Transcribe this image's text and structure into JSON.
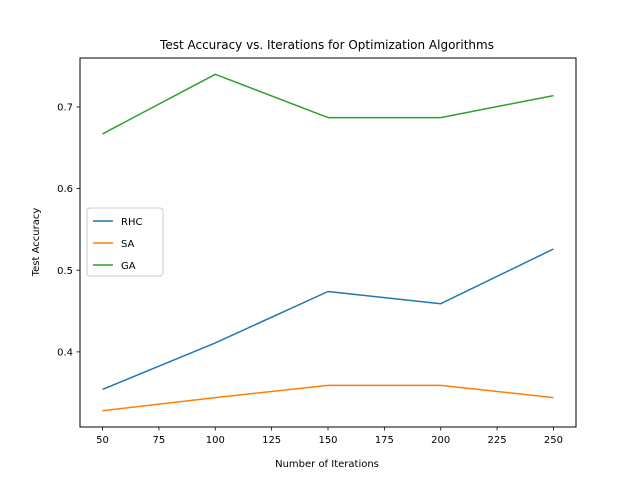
{
  "chart_data": {
    "type": "line",
    "title": "Test Accuracy vs. Iterations for Optimization Algorithms",
    "xlabel": "Number of Iterations",
    "ylabel": "Test Accuracy",
    "x": [
      50,
      100,
      150,
      200,
      250
    ],
    "series": [
      {
        "name": "RHC",
        "color": "#1f77b4",
        "values": [
          0.354,
          0.411,
          0.474,
          0.459,
          0.526
        ]
      },
      {
        "name": "SA",
        "color": "#ff7f0e",
        "values": [
          0.328,
          0.344,
          0.359,
          0.359,
          0.344
        ]
      },
      {
        "name": "GA",
        "color": "#2ca02c",
        "values": [
          0.667,
          0.74,
          0.687,
          0.687,
          0.714
        ]
      }
    ],
    "xlim": [
      40,
      260
    ],
    "ylim": [
      0.308,
      0.76
    ],
    "xticks": [
      50,
      75,
      100,
      125,
      150,
      175,
      200,
      225,
      250
    ],
    "yticks": [
      0.4,
      0.5,
      0.6,
      0.7
    ],
    "ytick_labels": [
      "0.4",
      "0.5",
      "0.6",
      "0.7"
    ],
    "grid": false,
    "legend_position": "center-left"
  }
}
